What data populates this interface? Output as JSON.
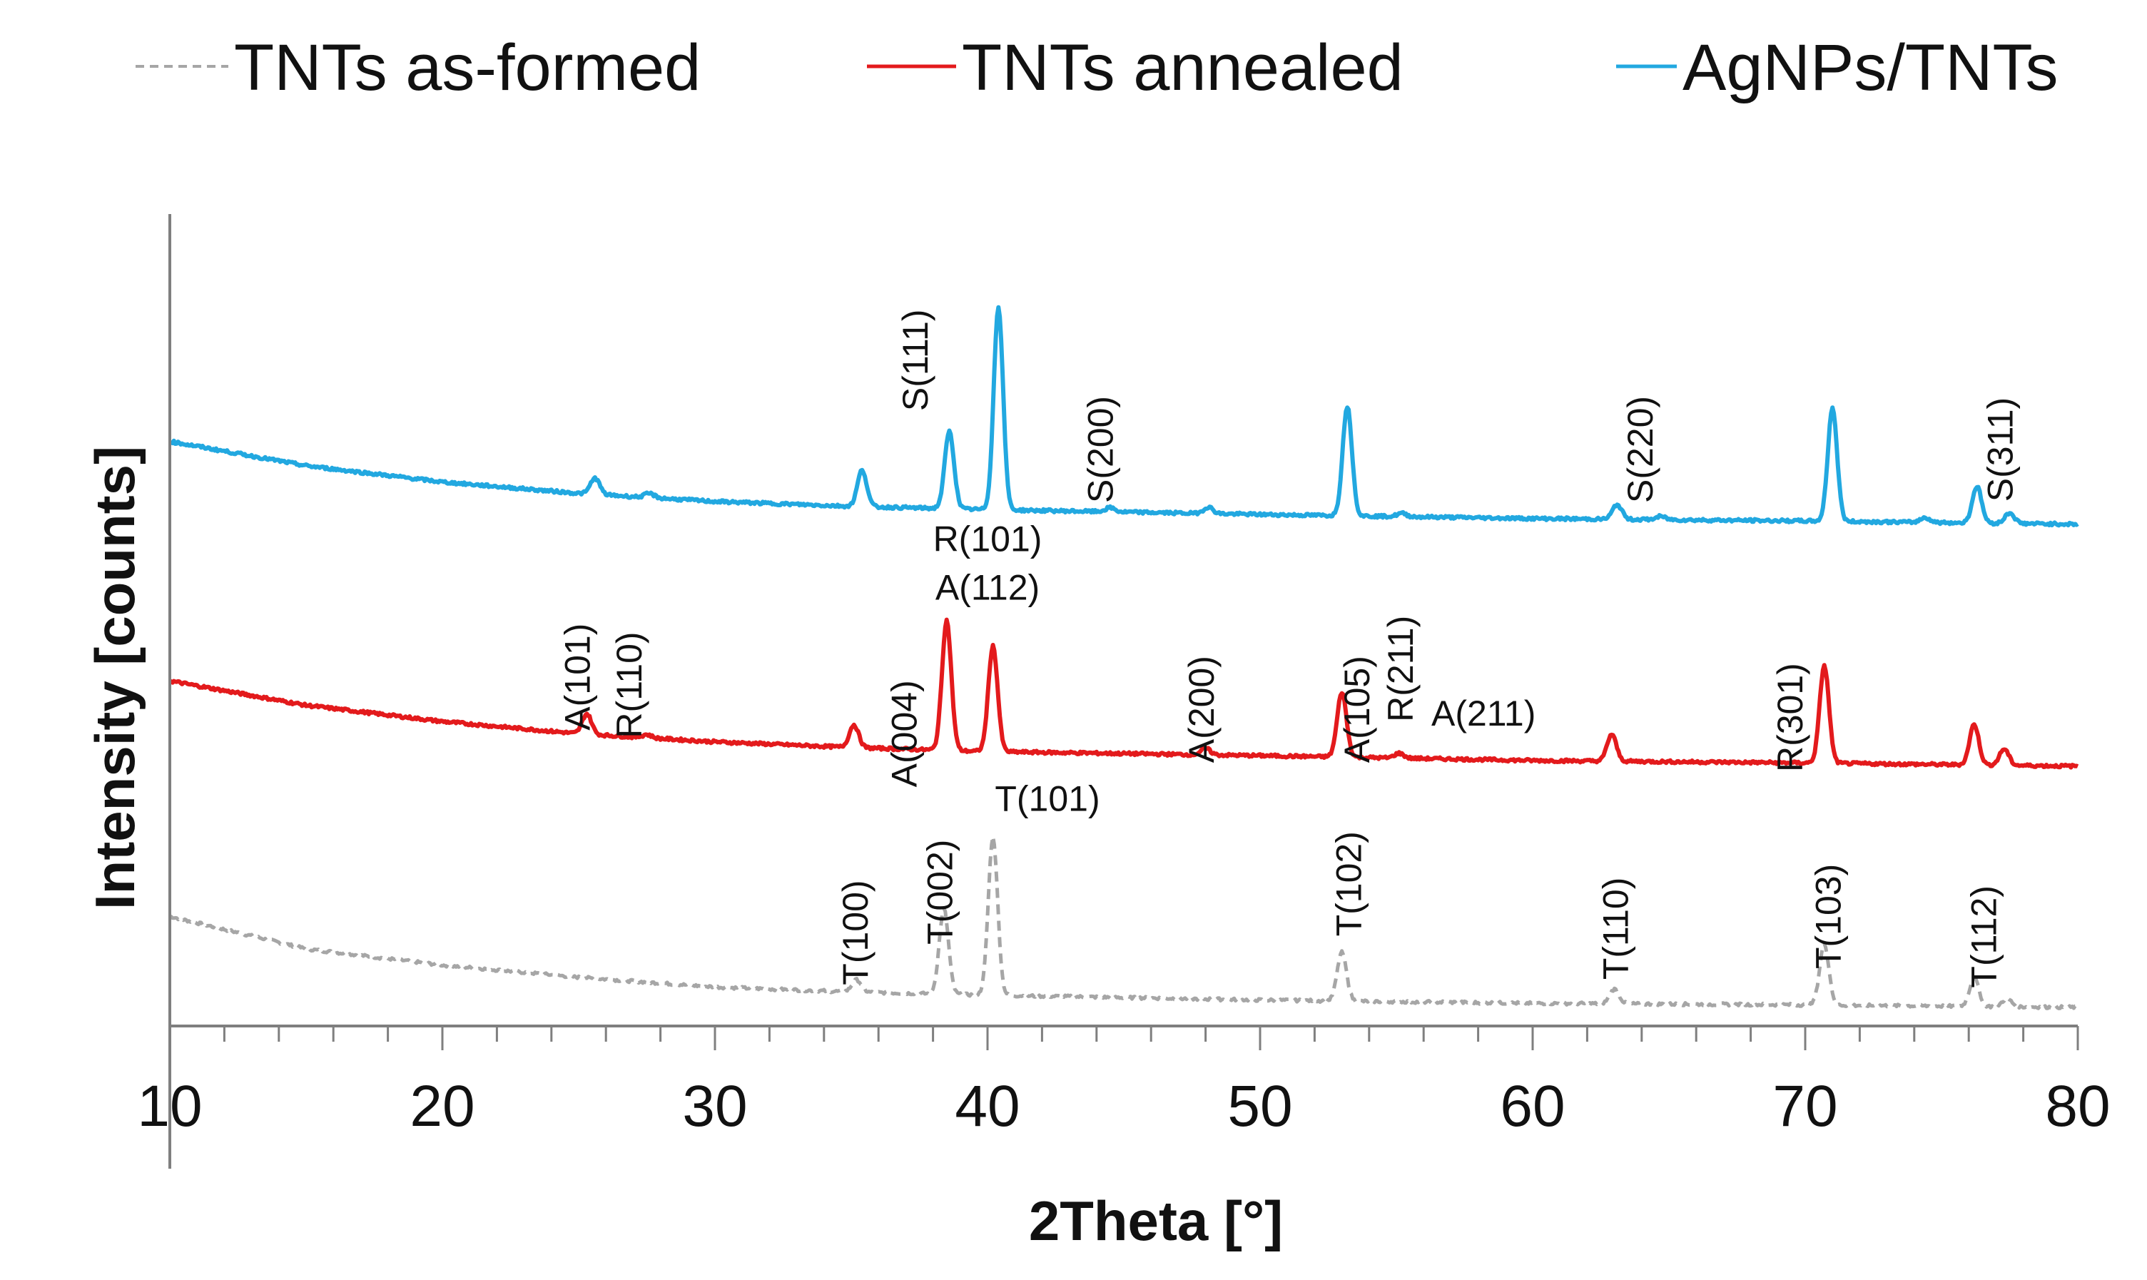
{
  "chart_data": {
    "type": "line",
    "xlabel": "2Theta [°]",
    "ylabel": "Intensity [counts]",
    "xlim": [
      10,
      80
    ],
    "xticks": [
      10,
      20,
      30,
      40,
      50,
      60,
      70,
      80
    ],
    "ylim": [
      0,
      100
    ],
    "yticks_shown": false,
    "legend_position": "top",
    "series": [
      {
        "name": "TNTs as-formed",
        "color": "#a6a6a6",
        "dashed": true,
        "base": [
          [
            10,
            13.5
          ],
          [
            15,
            9.5
          ],
          [
            20,
            7.5
          ],
          [
            25,
            6.0
          ],
          [
            30,
            4.8
          ],
          [
            35,
            4.2
          ],
          [
            40,
            3.8
          ],
          [
            50,
            3.2
          ],
          [
            60,
            2.8
          ],
          [
            70,
            2.6
          ],
          [
            80,
            2.3
          ]
        ],
        "peaks": [
          [
            35.2,
            1.5
          ],
          [
            38.4,
            10.5
          ],
          [
            40.2,
            19.5
          ],
          [
            53.0,
            6.0
          ],
          [
            63.0,
            1.8
          ],
          [
            70.7,
            7.5
          ],
          [
            76.2,
            3.5
          ],
          [
            77.4,
            1.0
          ]
        ]
      },
      {
        "name": "TNTs annealed",
        "color": "#e31a1c",
        "dashed": false,
        "base": [
          [
            10,
            42.5
          ],
          [
            15,
            39.5
          ],
          [
            20,
            37.5
          ],
          [
            25,
            36.0
          ],
          [
            30,
            35.0
          ],
          [
            35,
            34.3
          ],
          [
            40,
            33.8
          ],
          [
            50,
            33.3
          ],
          [
            60,
            32.7
          ],
          [
            70,
            32.4
          ],
          [
            80,
            32.0
          ]
        ],
        "peaks": [
          [
            25.3,
            2.5
          ],
          [
            27.5,
            0.4
          ],
          [
            35.1,
            2.8
          ],
          [
            38.5,
            16.0
          ],
          [
            40.2,
            13.0
          ],
          [
            48.0,
            0.8
          ],
          [
            53.0,
            8.0
          ],
          [
            55.1,
            0.6
          ],
          [
            62.9,
            3.3
          ],
          [
            70.7,
            12.0
          ],
          [
            76.2,
            5.0
          ],
          [
            77.3,
            2.0
          ]
        ]
      },
      {
        "name": "AgNPs/TNTs",
        "color": "#22a8e0",
        "dashed": false,
        "base": [
          [
            10,
            72.0
          ],
          [
            15,
            69.0
          ],
          [
            20,
            67.0
          ],
          [
            25,
            65.6
          ],
          [
            30,
            64.6
          ],
          [
            35,
            64.0
          ],
          [
            40,
            63.6
          ],
          [
            50,
            63.0
          ],
          [
            60,
            62.5
          ],
          [
            70,
            62.2
          ],
          [
            80,
            61.8
          ]
        ],
        "peaks": [
          [
            25.6,
            2.0
          ],
          [
            27.6,
            0.5
          ],
          [
            35.4,
            4.5
          ],
          [
            38.6,
            9.5
          ],
          [
            40.4,
            25.0
          ],
          [
            44.5,
            0.5
          ],
          [
            48.1,
            0.8
          ],
          [
            53.2,
            13.5
          ],
          [
            55.2,
            0.4
          ],
          [
            63.1,
            1.8
          ],
          [
            64.7,
            0.4
          ],
          [
            71.0,
            14.0
          ],
          [
            74.4,
            0.6
          ],
          [
            76.3,
            4.5
          ],
          [
            77.5,
            1.3
          ]
        ]
      }
    ],
    "annotations": [
      {
        "text": "S(111)",
        "x": 37.8,
        "y": 82,
        "rotate": true
      },
      {
        "text": "S(200)",
        "x": 44.6,
        "y": 71,
        "rotate": true
      },
      {
        "text": "S(220)",
        "x": 64.4,
        "y": 71,
        "rotate": true
      },
      {
        "text": "S(311)",
        "x": 77.6,
        "y": 71,
        "rotate": true
      },
      {
        "text": "R(101)",
        "x": 40.0,
        "y": 58.5,
        "rotate": false
      },
      {
        "text": "A(112)",
        "x": 40.0,
        "y": 52.5,
        "rotate": false
      },
      {
        "text": "A(101)",
        "x": 25.4,
        "y": 43,
        "rotate": true
      },
      {
        "text": "R(110)",
        "x": 27.3,
        "y": 42,
        "rotate": true
      },
      {
        "text": "A(004)",
        "x": 37.4,
        "y": 36,
        "rotate": true
      },
      {
        "text": "A(200)",
        "x": 48.3,
        "y": 39,
        "rotate": true
      },
      {
        "text": "A(105)",
        "x": 54.0,
        "y": 39,
        "rotate": true
      },
      {
        "text": "R(211)",
        "x": 55.6,
        "y": 44,
        "rotate": true
      },
      {
        "text": "A(211)",
        "x": 58.2,
        "y": 37,
        "rotate": false
      },
      {
        "text": "R(301)",
        "x": 69.9,
        "y": 38,
        "rotate": true
      },
      {
        "text": "T(100)",
        "x": 35.6,
        "y": 11.5,
        "rotate": true
      },
      {
        "text": "T(002)",
        "x": 38.7,
        "y": 16.5,
        "rotate": true
      },
      {
        "text": "T(101)",
        "x": 42.2,
        "y": 26.5,
        "rotate": false
      },
      {
        "text": "T(102)",
        "x": 53.7,
        "y": 17.5,
        "rotate": true
      },
      {
        "text": "T(110)",
        "x": 63.5,
        "y": 12,
        "rotate": true
      },
      {
        "text": "T(103)",
        "x": 71.3,
        "y": 13.5,
        "rotate": true
      },
      {
        "text": "T(112)",
        "x": 77.0,
        "y": 11,
        "rotate": true
      }
    ]
  }
}
